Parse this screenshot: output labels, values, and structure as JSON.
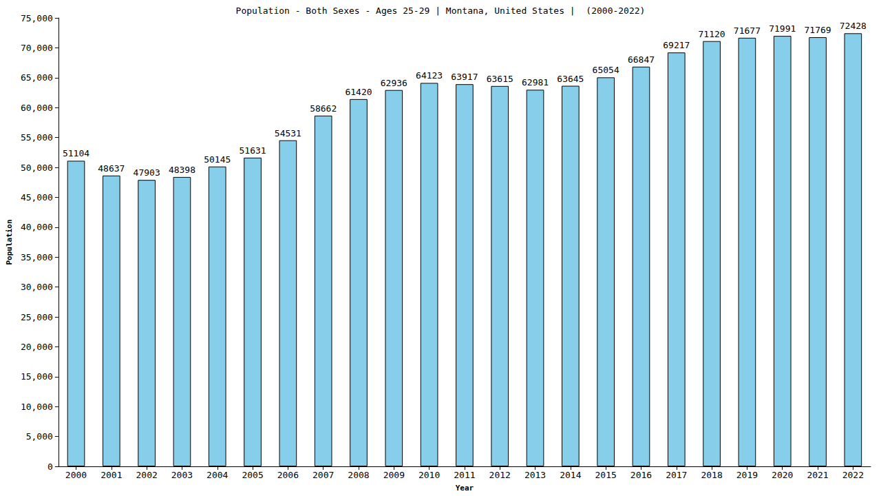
{
  "chart_data": {
    "type": "bar",
    "title": "Population - Both Sexes - Ages 25-29 | Montana, United States |  (2000-2022)",
    "x_label": "Year",
    "y_label": "Population",
    "categories": [
      "2000",
      "2001",
      "2002",
      "2003",
      "2004",
      "2005",
      "2006",
      "2007",
      "2008",
      "2009",
      "2010",
      "2011",
      "2012",
      "2013",
      "2014",
      "2015",
      "2016",
      "2017",
      "2018",
      "2019",
      "2020",
      "2021",
      "2022"
    ],
    "values": [
      51104,
      48637,
      47903,
      48398,
      50145,
      51631,
      54531,
      58662,
      61420,
      62936,
      64123,
      63917,
      63615,
      62981,
      63645,
      65054,
      66847,
      69217,
      71120,
      71677,
      71991,
      71769,
      72428
    ],
    "color": "#87ceeb",
    "ylim": [
      0,
      75000
    ],
    "yticks": [
      0,
      5000,
      10000,
      15000,
      20000,
      25000,
      30000,
      35000,
      40000,
      45000,
      50000,
      55000,
      60000,
      65000,
      70000,
      75000
    ],
    "grid": false,
    "data_labels": true
  }
}
